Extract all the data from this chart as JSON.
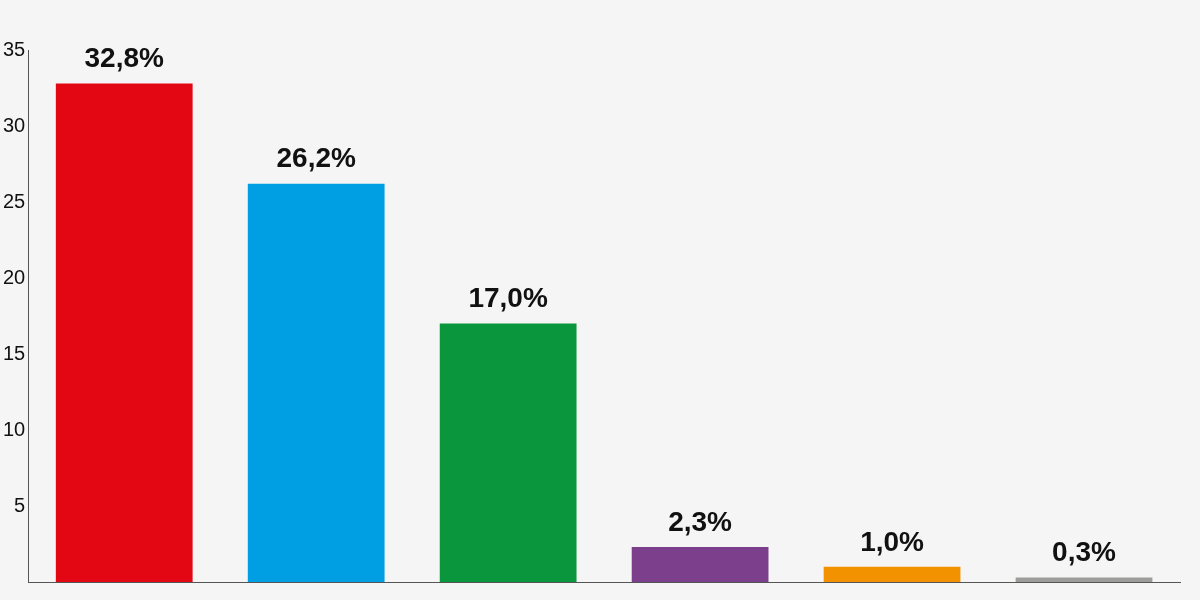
{
  "chart_data": {
    "type": "bar",
    "categories": [
      null,
      null,
      null,
      null,
      null,
      null
    ],
    "values": [
      32.8,
      26.2,
      17.0,
      2.3,
      1.0,
      0.3
    ],
    "colors": [
      "#e30613",
      "#009fe3",
      "#0a963c",
      "#7b3f8c",
      "#f39200",
      "#9d9d9c"
    ],
    "value_labels": [
      "32,8%",
      "26,2%",
      "17,0%",
      "2,3%",
      "1,0%",
      "0,3%"
    ],
    "ylim": [
      0,
      35
    ],
    "yticks": [
      5,
      10,
      15,
      20,
      25,
      30,
      35
    ],
    "grid": false,
    "legend": false
  }
}
